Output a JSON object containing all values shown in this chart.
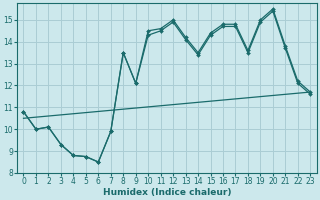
{
  "xlabel": "Humidex (Indice chaleur)",
  "xlim": [
    -0.5,
    23.5
  ],
  "ylim": [
    8,
    15.75
  ],
  "yticks": [
    8,
    9,
    10,
    11,
    12,
    13,
    14,
    15
  ],
  "xticks": [
    0,
    1,
    2,
    3,
    4,
    5,
    6,
    7,
    8,
    9,
    10,
    11,
    12,
    13,
    14,
    15,
    16,
    17,
    18,
    19,
    20,
    21,
    22,
    23
  ],
  "background_color": "#cce8ec",
  "grid_color": "#aacdd4",
  "line_color": "#1a6b6b",
  "line1_y": [
    10.8,
    10.0,
    10.1,
    9.3,
    8.8,
    8.75,
    8.5,
    9.9,
    13.5,
    12.1,
    14.5,
    14.6,
    15.0,
    14.2,
    13.5,
    14.4,
    14.8,
    14.8,
    13.6,
    15.0,
    15.5,
    13.8,
    12.2,
    11.7
  ],
  "line2_y": [
    10.8,
    10.0,
    10.1,
    9.3,
    8.8,
    8.75,
    8.5,
    9.9,
    13.5,
    12.1,
    14.3,
    14.5,
    14.9,
    14.1,
    13.4,
    14.3,
    14.7,
    14.7,
    13.5,
    14.9,
    15.4,
    13.7,
    12.1,
    11.6
  ],
  "line3_x": [
    0,
    23
  ],
  "line3_y": [
    10.5,
    11.7
  ]
}
